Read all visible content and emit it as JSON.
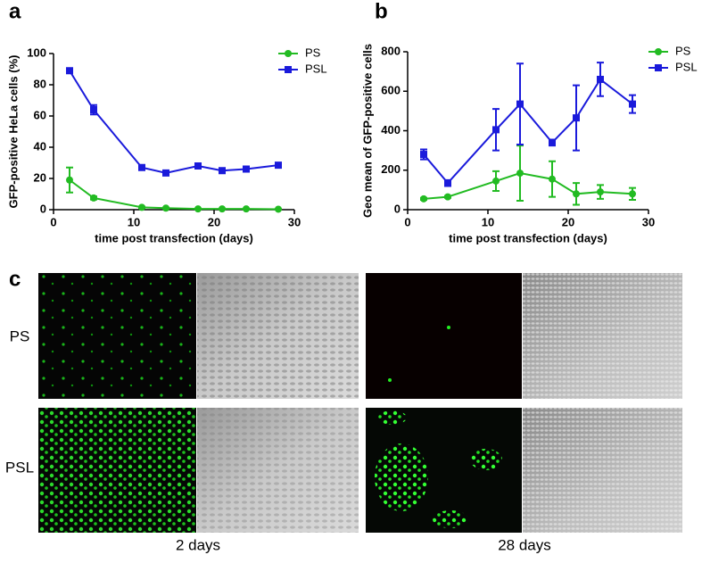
{
  "chart_data": [
    {
      "type": "line",
      "panel_label": "a",
      "x_label": "time post transfection (days)",
      "y_label": "GFP-positive HeLa cells (%)",
      "x": [
        2,
        5,
        11,
        14,
        18,
        21,
        24,
        28
      ],
      "series": [
        {
          "name": "PS",
          "color": "#22bb22",
          "marker": "circle",
          "values": [
            19,
            7.5,
            1.5,
            1,
            0.5,
            0.5,
            0.5,
            0.3
          ],
          "errors": [
            8,
            1,
            0.5,
            0.3,
            0.2,
            0.2,
            0.2,
            0.1
          ]
        },
        {
          "name": "PSL",
          "color": "#1a1adb",
          "marker": "square",
          "values": [
            89,
            64,
            27,
            23.5,
            28,
            25,
            26,
            28.5
          ],
          "errors": [
            1,
            3,
            1,
            1,
            1,
            1,
            1,
            1
          ]
        }
      ],
      "xlim": [
        0,
        30
      ],
      "xticks": [
        0,
        10,
        20,
        30
      ],
      "ylim": [
        0,
        100
      ],
      "yticks": [
        0,
        20,
        40,
        60,
        80,
        100
      ],
      "legend": "upper right"
    },
    {
      "type": "line",
      "panel_label": "b",
      "x_label": "time post transfection (days)",
      "y_label": "Geo mean of GFP-positive cells",
      "x": [
        2,
        5,
        11,
        14,
        18,
        21,
        24,
        28
      ],
      "series": [
        {
          "name": "PS",
          "color": "#22bb22",
          "marker": "circle",
          "values": [
            55,
            65,
            145,
            185,
            155,
            80,
            90,
            80
          ],
          "errors": [
            5,
            5,
            50,
            140,
            90,
            55,
            35,
            30
          ]
        },
        {
          "name": "PSL",
          "color": "#1a1adb",
          "marker": "square",
          "values": [
            280,
            135,
            405,
            535,
            340,
            465,
            660,
            535
          ],
          "errors": [
            25,
            15,
            105,
            205,
            15,
            165,
            85,
            45
          ]
        }
      ],
      "xlim": [
        0,
        30
      ],
      "xticks": [
        0,
        10,
        20,
        30
      ],
      "ylim": [
        0,
        800
      ],
      "yticks": [
        0,
        200,
        400,
        600,
        800
      ],
      "legend": "upper right"
    }
  ],
  "panel_c": {
    "panel_label": "c",
    "rows": [
      "PS",
      "PSL"
    ],
    "columns": [
      "2 days",
      "28 days"
    ]
  }
}
